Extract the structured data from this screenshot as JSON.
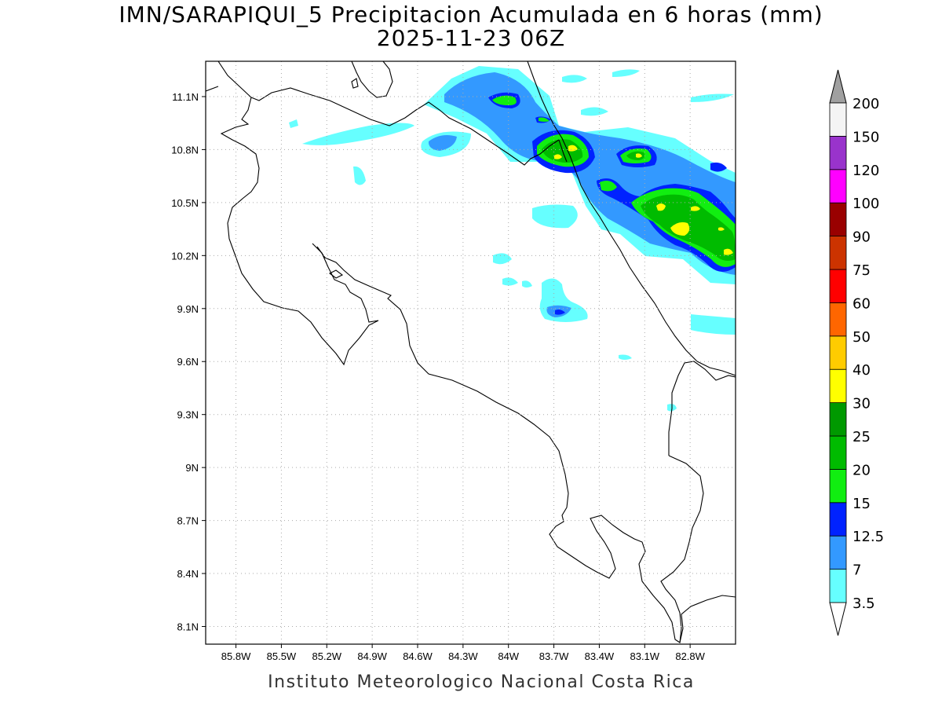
{
  "title": {
    "line1": "IMN/SARAPIQUI_5 Precipitacion Acumulada en 6 horas (mm)",
    "line2": "2025-11-23 06Z"
  },
  "map": {
    "lon_extent": [
      -86.0,
      -82.5
    ],
    "lat_extent": [
      8.0,
      11.3
    ],
    "grid": "dotted",
    "lon_ticks": [
      {
        "value": -85.8,
        "label": "85.8W"
      },
      {
        "value": -85.5,
        "label": "85.5W"
      },
      {
        "value": -85.2,
        "label": "85.2W"
      },
      {
        "value": -84.9,
        "label": "84.9W"
      },
      {
        "value": -84.6,
        "label": "84.6W"
      },
      {
        "value": -84.3,
        "label": "84.3W"
      },
      {
        "value": -84.0,
        "label": "84W"
      },
      {
        "value": -83.7,
        "label": "83.7W"
      },
      {
        "value": -83.4,
        "label": "83.4W"
      },
      {
        "value": -83.1,
        "label": "83.1W"
      },
      {
        "value": -82.8,
        "label": "82.8W"
      }
    ],
    "lat_ticks": [
      {
        "value": 11.1,
        "label": "11.1N"
      },
      {
        "value": 10.8,
        "label": "10.8N"
      },
      {
        "value": 10.5,
        "label": "10.5N"
      },
      {
        "value": 10.2,
        "label": "10.2N"
      },
      {
        "value": 9.9,
        "label": "9.9N"
      },
      {
        "value": 9.6,
        "label": "9.6N"
      },
      {
        "value": 9.3,
        "label": "9.3N"
      },
      {
        "value": 9.0,
        "label": "9N"
      },
      {
        "value": 8.7,
        "label": "8.7N"
      },
      {
        "value": 8.4,
        "label": "8.4N"
      },
      {
        "value": 8.1,
        "label": "8.1N"
      }
    ]
  },
  "colorbar": {
    "over_color": "#a0a0a0",
    "under_color": "#ffffff",
    "levels": [
      {
        "label": "3.5",
        "color": "#66ffff"
      },
      {
        "label": "7",
        "color": "#3399ff"
      },
      {
        "label": "12.5",
        "color": "#0022ff"
      },
      {
        "label": "15",
        "color": "#11ee11"
      },
      {
        "label": "20",
        "color": "#00bb00"
      },
      {
        "label": "25",
        "color": "#009900"
      },
      {
        "label": "30",
        "color": "#ffff00"
      },
      {
        "label": "40",
        "color": "#ffcc00"
      },
      {
        "label": "50",
        "color": "#ff6600"
      },
      {
        "label": "60",
        "color": "#ff0000"
      },
      {
        "label": "75",
        "color": "#cc3300"
      },
      {
        "label": "90",
        "color": "#990000"
      },
      {
        "label": "100",
        "color": "#ff00ff"
      },
      {
        "label": "120",
        "color": "#9933cc"
      },
      {
        "label": "150",
        "color": "#f4f4f4"
      },
      {
        "label": "200",
        "color": ""
      }
    ]
  },
  "footer": "Instituto Meteorologico Nacional Costa Rica"
}
